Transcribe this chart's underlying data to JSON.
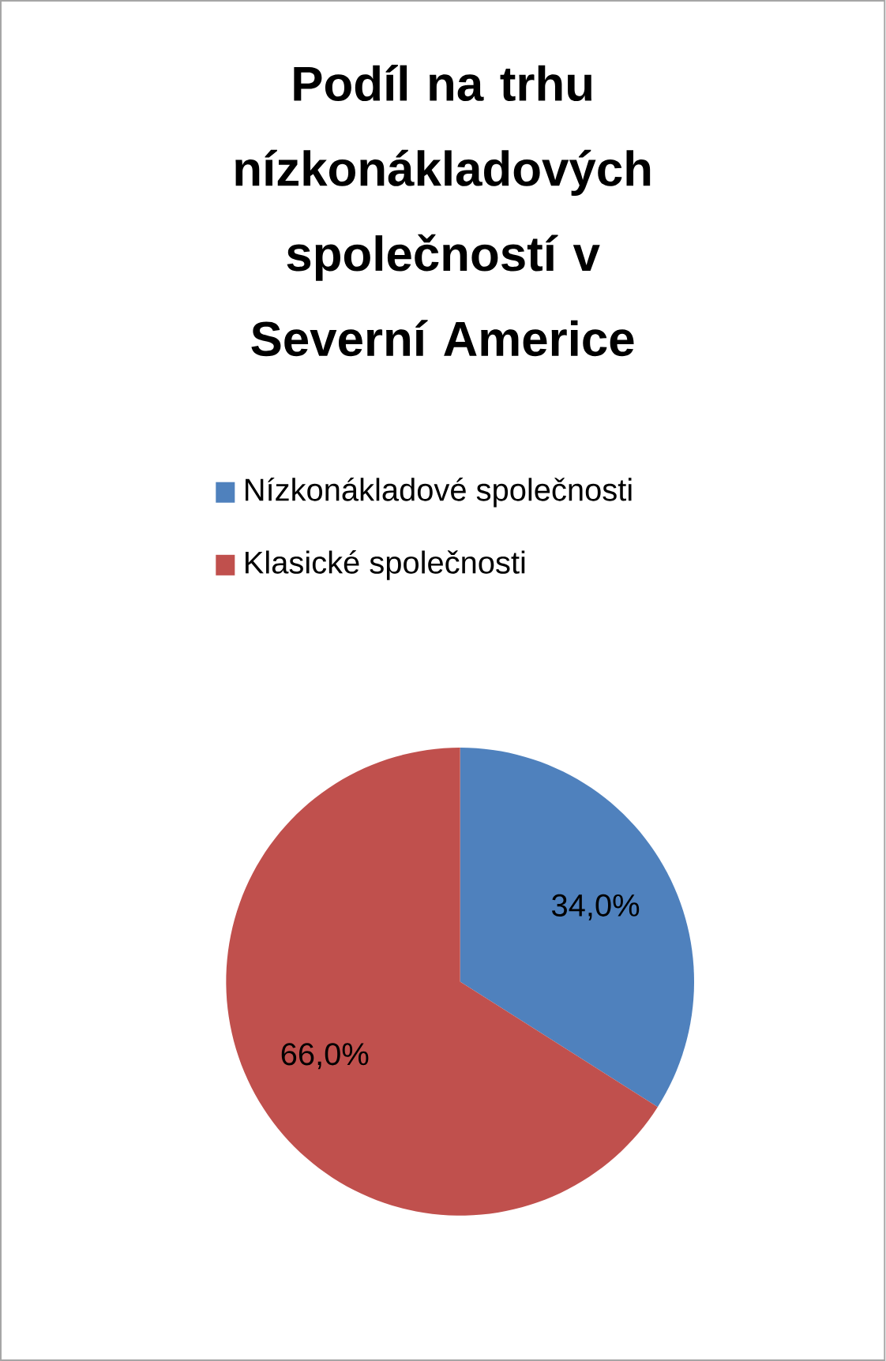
{
  "chart_data": {
    "type": "pie",
    "title": "Podíl na trhu nízkonákladových společností v Severní Americe",
    "categories": [
      "Nízkonákladové společnosti",
      "Klasické společnosti"
    ],
    "values": [
      34.0,
      66.0
    ],
    "colors": [
      "#4f81bd",
      "#c0504d"
    ],
    "value_labels": [
      "34,0%",
      "66,0%"
    ],
    "legend": "top"
  }
}
